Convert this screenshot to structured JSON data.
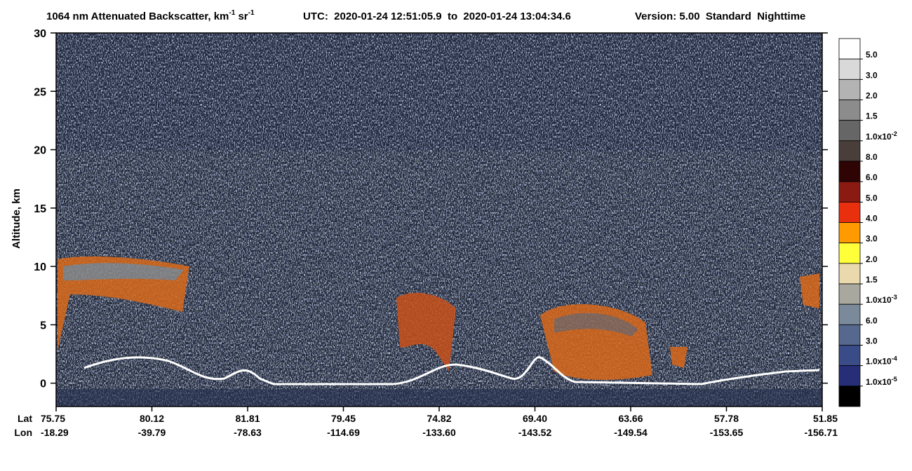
{
  "chart_data": {
    "type": "heatmap",
    "title_parts": [
      "1064 nm Attenuated Backscatter, km",
      "-1",
      " sr",
      "-1"
    ],
    "subtitle": "UTC:  2020-01-24 12:51:05.9  to  2020-01-24 13:04:34.6",
    "version": "Version: 5.00  Standard  Nighttime",
    "y_label": "Altitude, km",
    "ylim": [
      -2,
      30
    ],
    "yticks": [
      0,
      5,
      10,
      15,
      20,
      25,
      30
    ],
    "lat_label": "Lat",
    "lon_label": "Lon",
    "lat": [
      "75.75",
      "80.12",
      "81.81",
      "79.45",
      "74.82",
      "69.40",
      "63.66",
      "57.78",
      "51.85"
    ],
    "lon": [
      "-18.29",
      "-39.79",
      "-78.63",
      "-114.69",
      "-133.60",
      "-143.52",
      "-149.54",
      "-153.65",
      "-156.71"
    ],
    "colorbar": {
      "colors": [
        "#ffffff",
        "#d9d9d9",
        "#b3b3b3",
        "#8c8c8c",
        "#666666",
        "#4a3e3a",
        "#2e0404",
        "#8a1a12",
        "#e8300e",
        "#ff9a00",
        "#ffff3a",
        "#ead9ac",
        "#a8a89e",
        "#7a8a9a",
        "#56688e",
        "#3a4c88",
        "#262e78",
        "#000000"
      ],
      "labels": [
        "5.0",
        "3.0",
        "2.0",
        "1.5",
        {
          "text": "1.0x10",
          "exp": "-2"
        },
        "8.0",
        "6.0",
        "5.0",
        "4.0",
        "3.0",
        "2.0",
        "1.5",
        {
          "text": "1.0x10",
          "exp": "-3"
        },
        "6.0",
        "3.0",
        {
          "text": "1.0x10",
          "exp": "-4"
        },
        {
          "text": "1.0x10",
          "exp": "-5"
        }
      ]
    }
  }
}
